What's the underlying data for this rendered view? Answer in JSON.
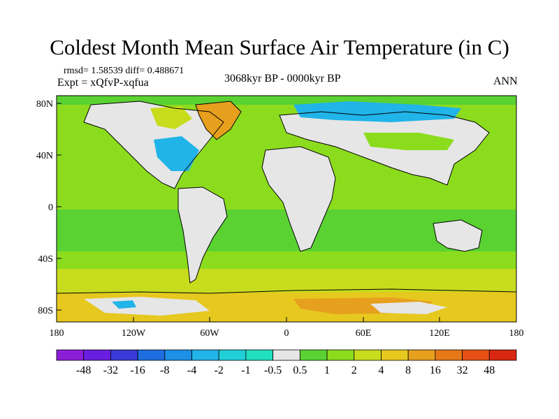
{
  "title": "Coldest Month Mean Surface Air Temperature (in C)",
  "stats": "rmsd= 1.58539 diff= 0.488671",
  "experiment": "Expt = xQfvP-xqfua",
  "period": "3068kyr BP - 0000kyr BP",
  "season": "ANN",
  "lat_labels": [
    "80N",
    "40N",
    "0",
    "40S",
    "80S"
  ],
  "lon_labels": [
    "180",
    "120W",
    "60W",
    "0",
    "60E",
    "120E",
    "180"
  ],
  "colorbar": {
    "labels": [
      "-48",
      "-32",
      "-16",
      "-8",
      "-4",
      "-2",
      "-1",
      "-0.5",
      "0.5",
      "1",
      "2",
      "4",
      "8",
      "16",
      "32",
      "48"
    ],
    "colors": [
      "#8c1ed8",
      "#6a1ee0",
      "#3a3ad8",
      "#1f6ee0",
      "#1e90e6",
      "#21b4e8",
      "#21cfd8",
      "#21e0c0",
      "#e6e6e6",
      "#5ad232",
      "#8cdc1e",
      "#c8dc1e",
      "#e6c81e",
      "#e6a01e",
      "#e67818",
      "#e65014",
      "#d82812"
    ]
  },
  "colors": {
    "land_fill": "#e6e6e6",
    "warm_light": "#8cdc1e",
    "warm": "#5ad232",
    "yellow": "#c8dc1e",
    "orange": "#e6a01e",
    "cool": "#21b4e8",
    "cool_light": "#21e0c0"
  }
}
